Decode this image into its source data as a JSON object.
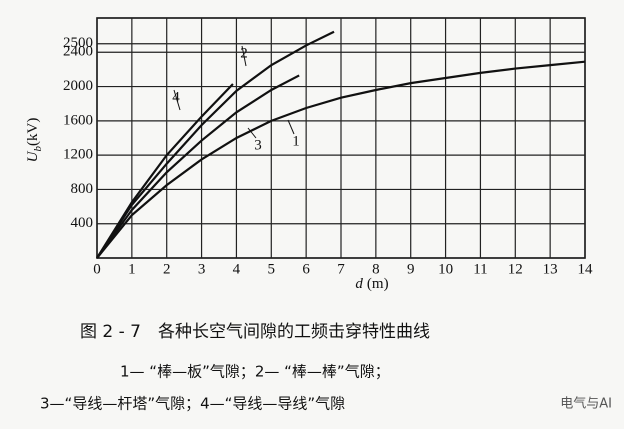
{
  "chart_data": {
    "type": "line",
    "y_label_symbol": "U",
    "y_label_subscript": "b",
    "y_label_unit": "(kV)",
    "x_label_symbol": "d",
    "x_label_unit": "(m)",
    "xlim": [
      0,
      14
    ],
    "xticks": [
      0,
      1,
      2,
      3,
      4,
      5,
      6,
      7,
      8,
      9,
      10,
      11,
      12,
      13,
      14
    ],
    "ylim": [
      0,
      2800
    ],
    "yticks": [
      0,
      400,
      800,
      1200,
      1600,
      2000,
      2400,
      2500
    ],
    "grid": true,
    "series": [
      {
        "name": "1",
        "color": "#111111",
        "x": [
          0,
          1,
          2,
          3,
          4,
          5,
          6,
          7,
          8,
          9,
          10,
          11,
          12,
          13,
          14
        ],
        "values": [
          0,
          500,
          850,
          1150,
          1400,
          1600,
          1750,
          1870,
          1960,
          2040,
          2100,
          2160,
          2210,
          2250,
          2290
        ]
      },
      {
        "name": "2",
        "color": "#111111",
        "x": [
          0,
          1,
          2,
          3,
          4,
          5,
          6,
          6.8
        ],
        "values": [
          0,
          620,
          1100,
          1550,
          1950,
          2250,
          2480,
          2640
        ]
      },
      {
        "name": "3",
        "color": "#111111",
        "x": [
          0,
          1,
          2,
          3,
          4,
          5,
          5.8
        ],
        "values": [
          0,
          560,
          1000,
          1370,
          1700,
          1960,
          2130
        ]
      },
      {
        "name": "4",
        "color": "#111111",
        "x": [
          0,
          1,
          2,
          3,
          3.9
        ],
        "values": [
          0,
          650,
          1200,
          1650,
          2030
        ]
      }
    ],
    "caption": "图 2 - 7　各种长空气间隙的工频击穿特性曲线",
    "legend_line_1": "1— “棒—板”气隙；2— “棒—棒”气隙；",
    "legend_line_2": "3—“导线—杆塔”气隙；4—“导线—导线”气隙",
    "watermark": "电气与AI"
  }
}
